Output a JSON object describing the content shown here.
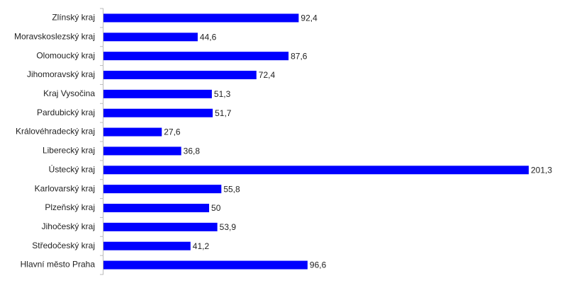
{
  "chart_data": {
    "type": "bar",
    "orientation": "horizontal",
    "categories": [
      "Zlínský kraj",
      "Moravskoslezský kraj",
      "Olomoucký kraj",
      "Jihomoravský kraj",
      "Kraj Vysočina",
      "Pardubický kraj",
      "Královéhradecký kraj",
      "Liberecký kraj",
      "Ústecký kraj",
      "Karlovarský kraj",
      "Plzeňský kraj",
      "Jihočeský kraj",
      "Středočeský kraj",
      "Hlavní město Praha"
    ],
    "values": [
      92.4,
      44.6,
      87.6,
      72.4,
      51.3,
      51.7,
      27.6,
      36.8,
      201.3,
      55.8,
      50,
      53.9,
      41.2,
      96.6
    ],
    "value_labels": [
      "92,4",
      "44,6",
      "87,6",
      "72,4",
      "51,3",
      "51,7",
      "27,6",
      "36,8",
      "201,3",
      "55,8",
      "50",
      "53,9",
      "41,2",
      "96,6"
    ],
    "color": "#0000ff"
  }
}
